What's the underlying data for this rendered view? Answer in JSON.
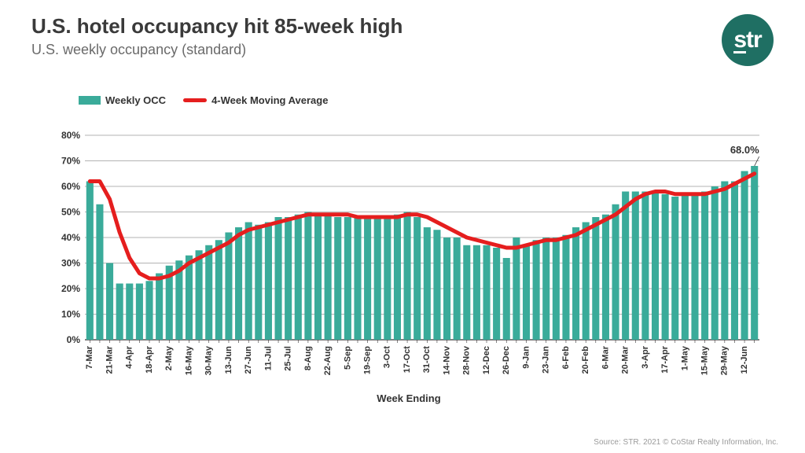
{
  "header": {
    "title": "U.S. hotel occupancy hit 85-week high",
    "subtitle": "U.S. weekly occupancy (standard)"
  },
  "logo": {
    "text": "str",
    "bg": "#1f6f63",
    "fg": "#ffffff"
  },
  "legend": {
    "bar_label": "Weekly OCC",
    "line_label": "4-Week Moving Average",
    "bar_color": "#3aab9a",
    "line_color": "#e51e1e"
  },
  "axes": {
    "xlabel": "Week Ending",
    "ylim": [
      0,
      80
    ],
    "ytick_step": 10,
    "ytick_suffix": "%",
    "grid_color": "#9a9a9a",
    "axis_color": "#333333",
    "label_fontsize": 12
  },
  "chart": {
    "type": "bar+line",
    "bar_color": "#3aab9a",
    "line_color": "#e51e1e",
    "line_width": 5,
    "background": "#ffffff",
    "callout_label": "68.0%",
    "x_tick_every": 2,
    "series": [
      {
        "label": "7-Mar",
        "bar": 62,
        "ma": 62
      },
      {
        "label": "14-Mar",
        "bar": 53,
        "ma": 62
      },
      {
        "label": "21-Mar",
        "bar": 30,
        "ma": 55
      },
      {
        "label": "28-Mar",
        "bar": 22,
        "ma": 42
      },
      {
        "label": "4-Apr",
        "bar": 22,
        "ma": 32
      },
      {
        "label": "11-Apr",
        "bar": 22,
        "ma": 26
      },
      {
        "label": "18-Apr",
        "bar": 23,
        "ma": 24
      },
      {
        "label": "25-Apr",
        "bar": 26,
        "ma": 24
      },
      {
        "label": "2-May",
        "bar": 29,
        "ma": 25
      },
      {
        "label": "9-May",
        "bar": 31,
        "ma": 27
      },
      {
        "label": "16-May",
        "bar": 33,
        "ma": 30
      },
      {
        "label": "23-May",
        "bar": 35,
        "ma": 32
      },
      {
        "label": "30-May",
        "bar": 37,
        "ma": 34
      },
      {
        "label": "6-Jun",
        "bar": 39,
        "ma": 36
      },
      {
        "label": "13-Jun",
        "bar": 42,
        "ma": 38
      },
      {
        "label": "20-Jun",
        "bar": 44,
        "ma": 41
      },
      {
        "label": "27-Jun",
        "bar": 46,
        "ma": 43
      },
      {
        "label": "4-Jul",
        "bar": 45,
        "ma": 44
      },
      {
        "label": "11-Jul",
        "bar": 46,
        "ma": 45
      },
      {
        "label": "18-Jul",
        "bar": 48,
        "ma": 46
      },
      {
        "label": "25-Jul",
        "bar": 48,
        "ma": 47
      },
      {
        "label": "1-Aug",
        "bar": 49,
        "ma": 48
      },
      {
        "label": "8-Aug",
        "bar": 50,
        "ma": 49
      },
      {
        "label": "15-Aug",
        "bar": 49,
        "ma": 49
      },
      {
        "label": "22-Aug",
        "bar": 49,
        "ma": 49
      },
      {
        "label": "29-Aug",
        "bar": 48,
        "ma": 49
      },
      {
        "label": "5-Sep",
        "bar": 48,
        "ma": 49
      },
      {
        "label": "12-Sep",
        "bar": 48,
        "ma": 48
      },
      {
        "label": "19-Sep",
        "bar": 48,
        "ma": 48
      },
      {
        "label": "26-Sep",
        "bar": 48,
        "ma": 48
      },
      {
        "label": "3-Oct",
        "bar": 48,
        "ma": 48
      },
      {
        "label": "10-Oct",
        "bar": 49,
        "ma": 48
      },
      {
        "label": "17-Oct",
        "bar": 50,
        "ma": 49
      },
      {
        "label": "24-Oct",
        "bar": 48,
        "ma": 49
      },
      {
        "label": "31-Oct",
        "bar": 44,
        "ma": 48
      },
      {
        "label": "7-Nov",
        "bar": 43,
        "ma": 46
      },
      {
        "label": "14-Nov",
        "bar": 40,
        "ma": 44
      },
      {
        "label": "21-Nov",
        "bar": 40,
        "ma": 42
      },
      {
        "label": "28-Nov",
        "bar": 37,
        "ma": 40
      },
      {
        "label": "5-Dec",
        "bar": 37,
        "ma": 39
      },
      {
        "label": "12-Dec",
        "bar": 37,
        "ma": 38
      },
      {
        "label": "19-Dec",
        "bar": 36,
        "ma": 37
      },
      {
        "label": "26-Dec",
        "bar": 32,
        "ma": 36
      },
      {
        "label": "2-Jan",
        "bar": 40,
        "ma": 36
      },
      {
        "label": "9-Jan",
        "bar": 37,
        "ma": 37
      },
      {
        "label": "16-Jan",
        "bar": 39,
        "ma": 38
      },
      {
        "label": "23-Jan",
        "bar": 40,
        "ma": 39
      },
      {
        "label": "30-Jan",
        "bar": 40,
        "ma": 39
      },
      {
        "label": "6-Feb",
        "bar": 41,
        "ma": 40
      },
      {
        "label": "13-Feb",
        "bar": 44,
        "ma": 41
      },
      {
        "label": "20-Feb",
        "bar": 46,
        "ma": 43
      },
      {
        "label": "27-Feb",
        "bar": 48,
        "ma": 45
      },
      {
        "label": "6-Mar",
        "bar": 49,
        "ma": 47
      },
      {
        "label": "13-Mar",
        "bar": 53,
        "ma": 49
      },
      {
        "label": "20-Mar",
        "bar": 58,
        "ma": 52
      },
      {
        "label": "27-Mar",
        "bar": 58,
        "ma": 55
      },
      {
        "label": "3-Apr",
        "bar": 58,
        "ma": 57
      },
      {
        "label": "10-Apr",
        "bar": 58,
        "ma": 58
      },
      {
        "label": "17-Apr",
        "bar": 57,
        "ma": 58
      },
      {
        "label": "24-Apr",
        "bar": 56,
        "ma": 57
      },
      {
        "label": "1-May",
        "bar": 57,
        "ma": 57
      },
      {
        "label": "8-May",
        "bar": 57,
        "ma": 57
      },
      {
        "label": "15-May",
        "bar": 58,
        "ma": 57
      },
      {
        "label": "22-May",
        "bar": 60,
        "ma": 58
      },
      {
        "label": "29-May",
        "bar": 62,
        "ma": 59
      },
      {
        "label": "5-Jun",
        "bar": 62,
        "ma": 61
      },
      {
        "label": "12-Jun",
        "bar": 66,
        "ma": 63
      },
      {
        "label": "19-Jun",
        "bar": 68,
        "ma": 65
      }
    ]
  },
  "footnote": "Source: STR. 2021 © CoStar Realty Information, Inc."
}
